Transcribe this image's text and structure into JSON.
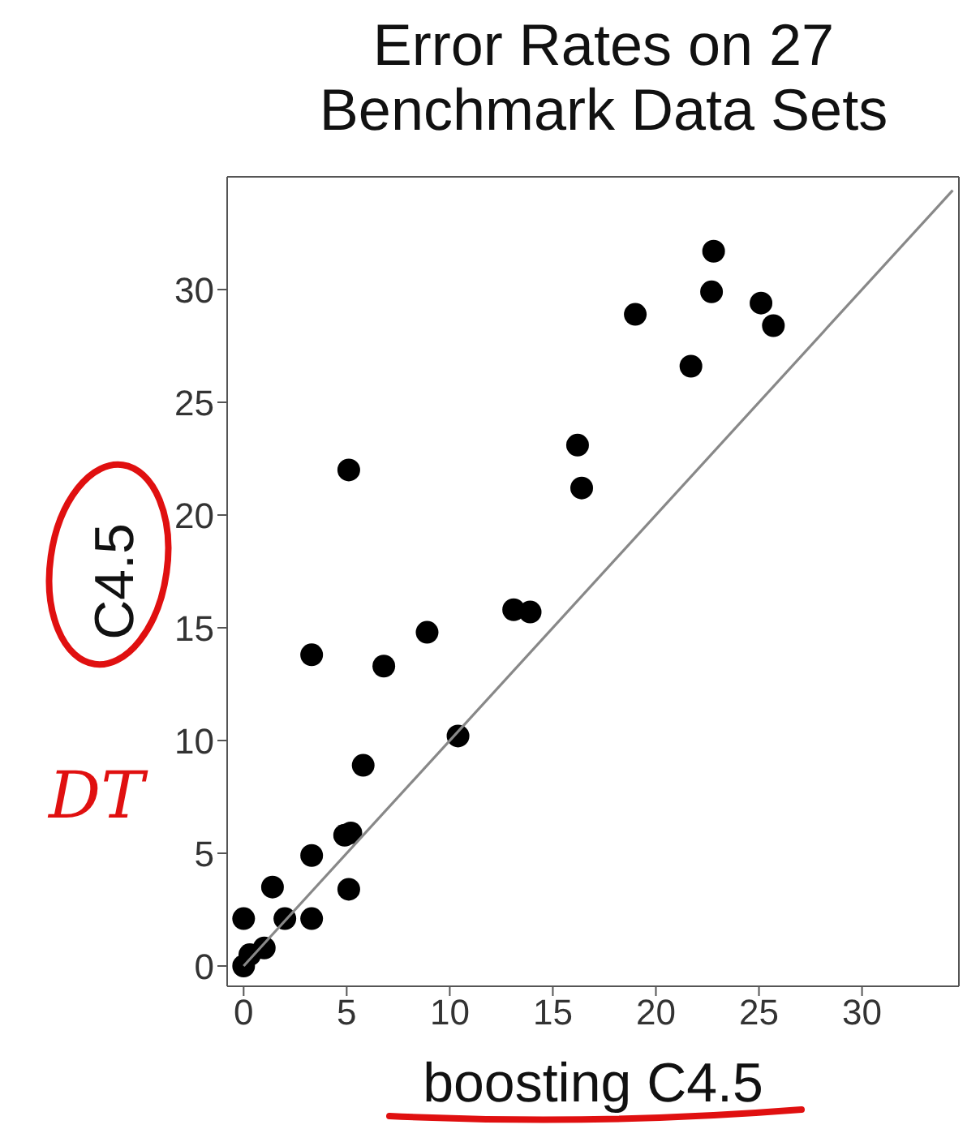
{
  "chart_data": {
    "type": "scatter",
    "title": "Error Rates on 27 Benchmark Data Sets",
    "xlabel": "boosting C4.5",
    "ylabel": "C4.5",
    "annotations": [
      "DT"
    ],
    "xlim": [
      -0.8,
      34.7
    ],
    "ylim": [
      -0.9,
      35
    ],
    "xticks": [
      0,
      5,
      10,
      15,
      20,
      25,
      30
    ],
    "yticks": [
      0,
      5,
      10,
      15,
      20,
      25,
      30
    ],
    "series": [
      {
        "type": "scatter",
        "color": "#000000",
        "marker": "circle",
        "x": [
          0,
          0.3,
          1.0,
          0,
          2.0,
          3.3,
          1.4,
          3.3,
          5.1,
          4.9,
          5.2,
          5.8,
          10.4,
          3.3,
          6.8,
          8.9,
          13.1,
          13.9,
          5.1,
          16.2,
          16.4,
          19.0,
          21.7,
          22.7,
          22.8,
          25.1,
          25.7
        ],
        "values": [
          0,
          0.5,
          0.8,
          2.1,
          2.1,
          2.1,
          3.5,
          4.9,
          3.4,
          5.8,
          5.9,
          8.9,
          10.2,
          13.8,
          13.3,
          14.8,
          15.8,
          15.7,
          22.0,
          23.1,
          21.2,
          28.9,
          26.6,
          29.9,
          31.7,
          29.4,
          28.4
        ]
      },
      {
        "type": "line",
        "color": "#888888",
        "marker": "none",
        "line_style": "solid",
        "x": [
          0,
          34.4
        ],
        "values": [
          0,
          34.4
        ]
      }
    ]
  }
}
